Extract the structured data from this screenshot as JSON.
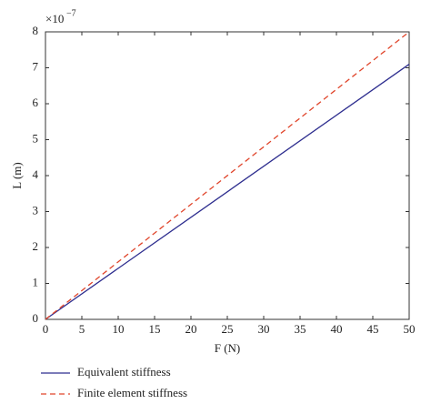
{
  "chart_data": {
    "type": "line",
    "y_label": "L (m)",
    "x_label": "F (N)",
    "y_multiplier": "×10",
    "y_multiplier_exponent": "−7",
    "x": [
      0,
      50
    ],
    "series": [
      {
        "name": "Equivalent stiffness",
        "color": "#2e2e8f",
        "linestyle": "solid",
        "values": [
          0,
          7.1
        ]
      },
      {
        "name": "Finite element stiffness",
        "color": "#e0452b",
        "linestyle": "dashed",
        "values": [
          0,
          8
        ]
      }
    ],
    "xlim": [
      0,
      50
    ],
    "xticks": [
      0,
      5,
      10,
      15,
      20,
      25,
      30,
      35,
      40,
      45,
      50
    ],
    "ylim": [
      0,
      8
    ],
    "yticks": [
      0,
      1,
      2,
      3,
      4,
      5,
      6,
      7,
      8
    ],
    "grid": false,
    "legend": "bottom-left"
  }
}
